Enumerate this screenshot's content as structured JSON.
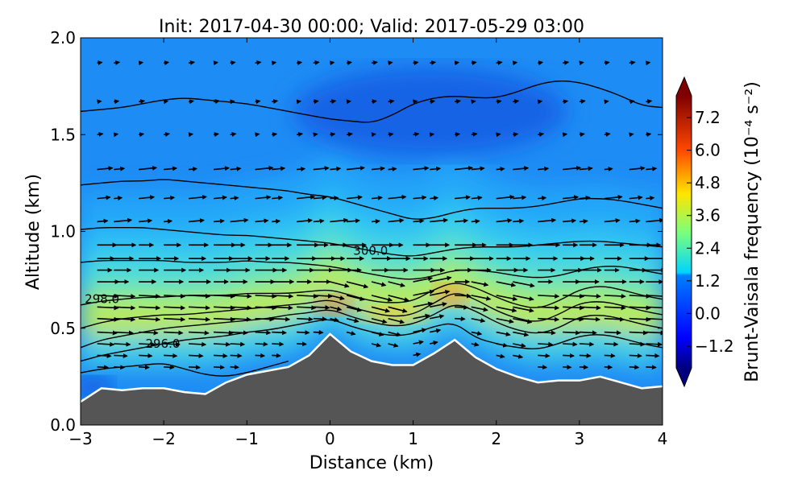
{
  "chart_data": {
    "type": "contour",
    "title": "Init: 2017-04-30 00:00; Valid: 2017-05-29 03:00",
    "xlabel": "Distance (km)",
    "ylabel": "Altitude (km)",
    "xlim": [
      -3,
      4
    ],
    "ylim": [
      0.0,
      2.0
    ],
    "xticks": [
      -3,
      -2,
      -1,
      0,
      1,
      2,
      3,
      4
    ],
    "xtick_labels": [
      "−3",
      "−2",
      "−1",
      "0",
      "1",
      "2",
      "3",
      "4"
    ],
    "yticks": [
      0.0,
      0.5,
      1.0,
      1.5,
      2.0
    ],
    "ytick_labels": [
      "0.0",
      "0.5",
      "1.0",
      "1.5",
      "2.0"
    ],
    "colorbar": {
      "label": "Brunt-Vaisala frequency (10⁻⁴ s⁻²)",
      "range": [
        -2.0,
        8.0
      ],
      "ticks": [
        -1.2,
        0.0,
        1.2,
        2.4,
        3.6,
        4.8,
        6.0,
        7.2
      ],
      "tick_labels": [
        "−1.2",
        "0.0",
        "1.2",
        "2.4",
        "3.6",
        "4.8",
        "6.0",
        "7.2"
      ],
      "extend": "both",
      "colormap": "jet"
    },
    "terrain": {
      "x": [
        -3.0,
        -2.75,
        -2.5,
        -2.25,
        -2.0,
        -1.75,
        -1.5,
        -1.25,
        -1.0,
        -0.75,
        -0.5,
        -0.25,
        0.0,
        0.25,
        0.5,
        0.75,
        1.0,
        1.25,
        1.5,
        1.75,
        2.0,
        2.25,
        2.5,
        2.75,
        3.0,
        3.25,
        3.5,
        3.75,
        4.0
      ],
      "y": [
        0.12,
        0.19,
        0.18,
        0.19,
        0.19,
        0.17,
        0.16,
        0.22,
        0.26,
        0.28,
        0.3,
        0.36,
        0.47,
        0.38,
        0.33,
        0.31,
        0.31,
        0.37,
        0.44,
        0.35,
        0.29,
        0.25,
        0.22,
        0.23,
        0.23,
        0.25,
        0.22,
        0.19,
        0.2
      ],
      "fill_color": "#555555"
    },
    "theta_contours": [
      {
        "label": "",
        "x": [
          -3.0,
          -2.75,
          -2.5,
          -2.25,
          -2.0,
          -1.75,
          -1.5,
          -1.25,
          -1.0,
          -0.75,
          -0.5,
          -0.25,
          0.0,
          0.25,
          0.5,
          0.75,
          1.0,
          1.25,
          1.5,
          1.75,
          2.0,
          2.25,
          2.5,
          2.75,
          3.0,
          3.25,
          3.5,
          3.75,
          4.0
        ],
        "y": [
          1.62,
          1.63,
          1.64,
          1.66,
          1.68,
          1.69,
          1.68,
          1.67,
          1.66,
          1.64,
          1.62,
          1.6,
          1.58,
          1.57,
          1.56,
          1.6,
          1.66,
          1.69,
          1.7,
          1.69,
          1.69,
          1.72,
          1.76,
          1.78,
          1.77,
          1.74,
          1.7,
          1.65,
          1.64
        ]
      },
      {
        "label": "",
        "x": [
          -3.0,
          -2.75,
          -2.5,
          -2.25,
          -2.0,
          -1.75,
          -1.5,
          -1.25,
          -1.0,
          -0.75,
          -0.5,
          -0.25,
          0.0,
          0.25,
          0.5,
          0.75,
          1.0,
          1.25,
          1.5,
          1.75,
          2.0,
          2.25,
          2.5,
          2.75,
          3.0,
          3.25,
          3.5,
          3.75,
          4.0
        ],
        "y": [
          1.24,
          1.25,
          1.26,
          1.26,
          1.27,
          1.26,
          1.25,
          1.24,
          1.23,
          1.22,
          1.21,
          1.19,
          1.18,
          1.15,
          1.12,
          1.09,
          1.06,
          1.07,
          1.1,
          1.12,
          1.12,
          1.12,
          1.13,
          1.15,
          1.17,
          1.17,
          1.16,
          1.14,
          1.12
        ]
      },
      {
        "label": "",
        "x": [
          -3.0,
          -2.75,
          -2.5,
          -2.25,
          -2.0,
          -1.75,
          -1.5,
          -1.25,
          -1.0,
          -0.75,
          -0.5,
          -0.25,
          0.0,
          0.25,
          0.5,
          0.75,
          1.0,
          1.25,
          1.5,
          1.75,
          2.0,
          2.25,
          2.5,
          2.75,
          3.0,
          3.25,
          3.5,
          3.75,
          4.0
        ],
        "y": [
          1.01,
          1.02,
          1.02,
          1.02,
          1.01,
          1.0,
          0.99,
          0.98,
          0.98,
          0.97,
          0.96,
          0.95,
          0.94,
          0.92,
          0.9,
          0.88,
          0.87,
          0.89,
          0.91,
          0.92,
          0.92,
          0.92,
          0.93,
          0.94,
          0.95,
          0.95,
          0.94,
          0.93,
          0.92
        ]
      },
      {
        "label": "300.0",
        "label_x": 0.28,
        "label_y": 0.9,
        "x": [
          -3.0,
          -2.75,
          -2.5,
          -2.25,
          -2.0,
          -1.75,
          -1.5,
          -1.25,
          -1.0,
          -0.75,
          -0.5,
          -0.25,
          0.0,
          0.25,
          0.5,
          0.75,
          1.0,
          1.25,
          1.5,
          1.75,
          2.0,
          2.25,
          2.5,
          2.75,
          3.0,
          3.25,
          3.5,
          3.75,
          4.0
        ],
        "y": [
          0.84,
          0.85,
          0.85,
          0.85,
          0.85,
          0.84,
          0.84,
          0.84,
          0.85,
          0.84,
          0.84,
          0.83,
          0.82,
          0.8,
          0.78,
          0.76,
          0.75,
          0.77,
          0.8,
          0.8,
          0.79,
          0.77,
          0.76,
          0.77,
          0.8,
          0.82,
          0.82,
          0.8,
          0.78
        ]
      },
      {
        "label": "298.0",
        "label_x": -2.95,
        "label_y": 0.65,
        "x": [
          -3.0,
          -2.75,
          -2.5,
          -2.25,
          -2.0,
          -1.75,
          -1.5,
          -1.25,
          -1.0,
          -0.75,
          -0.5,
          -0.25,
          0.0,
          0.25,
          0.5,
          0.75,
          1.0,
          1.25,
          1.5,
          1.75,
          2.0,
          2.25,
          2.5,
          2.75,
          3.0,
          3.25,
          3.5,
          3.75,
          4.0
        ],
        "y": [
          0.62,
          0.64,
          0.65,
          0.66,
          0.66,
          0.67,
          0.67,
          0.67,
          0.68,
          0.68,
          0.68,
          0.69,
          0.7,
          0.67,
          0.64,
          0.63,
          0.64,
          0.7,
          0.74,
          0.71,
          0.66,
          0.62,
          0.6,
          0.64,
          0.7,
          0.72,
          0.7,
          0.67,
          0.65
        ]
      },
      {
        "label": "",
        "x": [
          -3.0,
          -2.75,
          -2.5,
          -2.25,
          -2.0,
          -1.75,
          -1.5,
          -1.25,
          -1.0,
          -0.75,
          -0.5,
          -0.25,
          0.0,
          0.25,
          0.5,
          0.75,
          1.0,
          1.25,
          1.5,
          1.75,
          2.0,
          2.25,
          2.5,
          2.75,
          3.0,
          3.25,
          3.5,
          3.75,
          4.0
        ],
        "y": [
          0.5,
          0.53,
          0.55,
          0.56,
          0.57,
          0.57,
          0.58,
          0.59,
          0.6,
          0.61,
          0.62,
          0.63,
          0.65,
          0.61,
          0.58,
          0.56,
          0.57,
          0.63,
          0.69,
          0.65,
          0.59,
          0.55,
          0.53,
          0.57,
          0.63,
          0.64,
          0.62,
          0.59,
          0.57
        ]
      },
      {
        "label": "",
        "x": [
          -3.0,
          -2.75,
          -2.5,
          -2.25,
          -2.0,
          -1.75,
          -1.5,
          -1.25,
          -1.0,
          -0.75,
          -0.5,
          -0.25,
          0.0,
          0.25,
          0.5,
          0.75,
          1.0,
          1.25,
          1.5,
          1.75,
          2.0,
          2.25,
          2.5,
          2.75,
          3.0,
          3.25,
          3.5,
          3.75,
          4.0
        ],
        "y": [
          0.4,
          0.44,
          0.46,
          0.48,
          0.5,
          0.51,
          0.52,
          0.53,
          0.54,
          0.55,
          0.57,
          0.58,
          0.6,
          0.56,
          0.53,
          0.51,
          0.52,
          0.57,
          0.63,
          0.59,
          0.53,
          0.49,
          0.47,
          0.5,
          0.56,
          0.57,
          0.55,
          0.52,
          0.5
        ]
      },
      {
        "label": "296.0",
        "label_x": -2.22,
        "label_y": 0.42,
        "x": [
          -3.0,
          -2.75,
          -2.5,
          -2.25,
          -2.0,
          -1.75,
          -1.5,
          -1.25,
          -1.0,
          -0.75,
          -0.5,
          -0.25,
          0.0,
          0.25,
          0.5,
          0.75,
          1.0,
          1.25,
          1.5,
          1.75,
          2.0,
          2.25,
          2.5,
          2.75,
          3.0,
          3.25,
          3.5,
          3.75,
          4.0
        ],
        "y": [
          0.33,
          0.36,
          0.38,
          0.4,
          0.42,
          0.44,
          0.45,
          0.46,
          0.48,
          0.49,
          0.51,
          0.53,
          0.55,
          0.51,
          0.48,
          0.46,
          0.47,
          0.51,
          0.53,
          0.45,
          0.42,
          0.4,
          0.39,
          0.42,
          0.46,
          0.47,
          0.45,
          0.42,
          0.4
        ]
      },
      {
        "label": "",
        "x": [
          -3.0,
          -2.75,
          -2.5,
          -2.25,
          -2.0,
          -1.75,
          -1.5,
          -1.25,
          -1.0,
          -0.75,
          -0.5
        ],
        "y": [
          0.27,
          0.29,
          0.3,
          0.31,
          0.32,
          0.29,
          0.26,
          0.25,
          0.27,
          0.3,
          0.33
        ]
      }
    ],
    "wind_vectors": {
      "columns_x": [
        -2.8,
        -2.6,
        -2.3,
        -2.0,
        -1.7,
        -1.4,
        -1.2,
        -0.9,
        -0.7,
        -0.4,
        -0.2,
        0.0,
        0.2,
        0.5,
        0.7,
        1.0,
        1.2,
        1.5,
        1.7,
        2.0,
        2.2,
        2.5,
        2.8,
        3.0,
        3.3,
        3.6,
        3.8
      ],
      "rows_y": [
        0.3,
        0.36,
        0.42,
        0.48,
        0.55,
        0.61,
        0.67,
        0.74,
        0.8,
        0.86,
        0.93,
        1.05,
        1.17,
        1.32,
        1.5,
        1.67,
        1.87
      ]
    }
  }
}
